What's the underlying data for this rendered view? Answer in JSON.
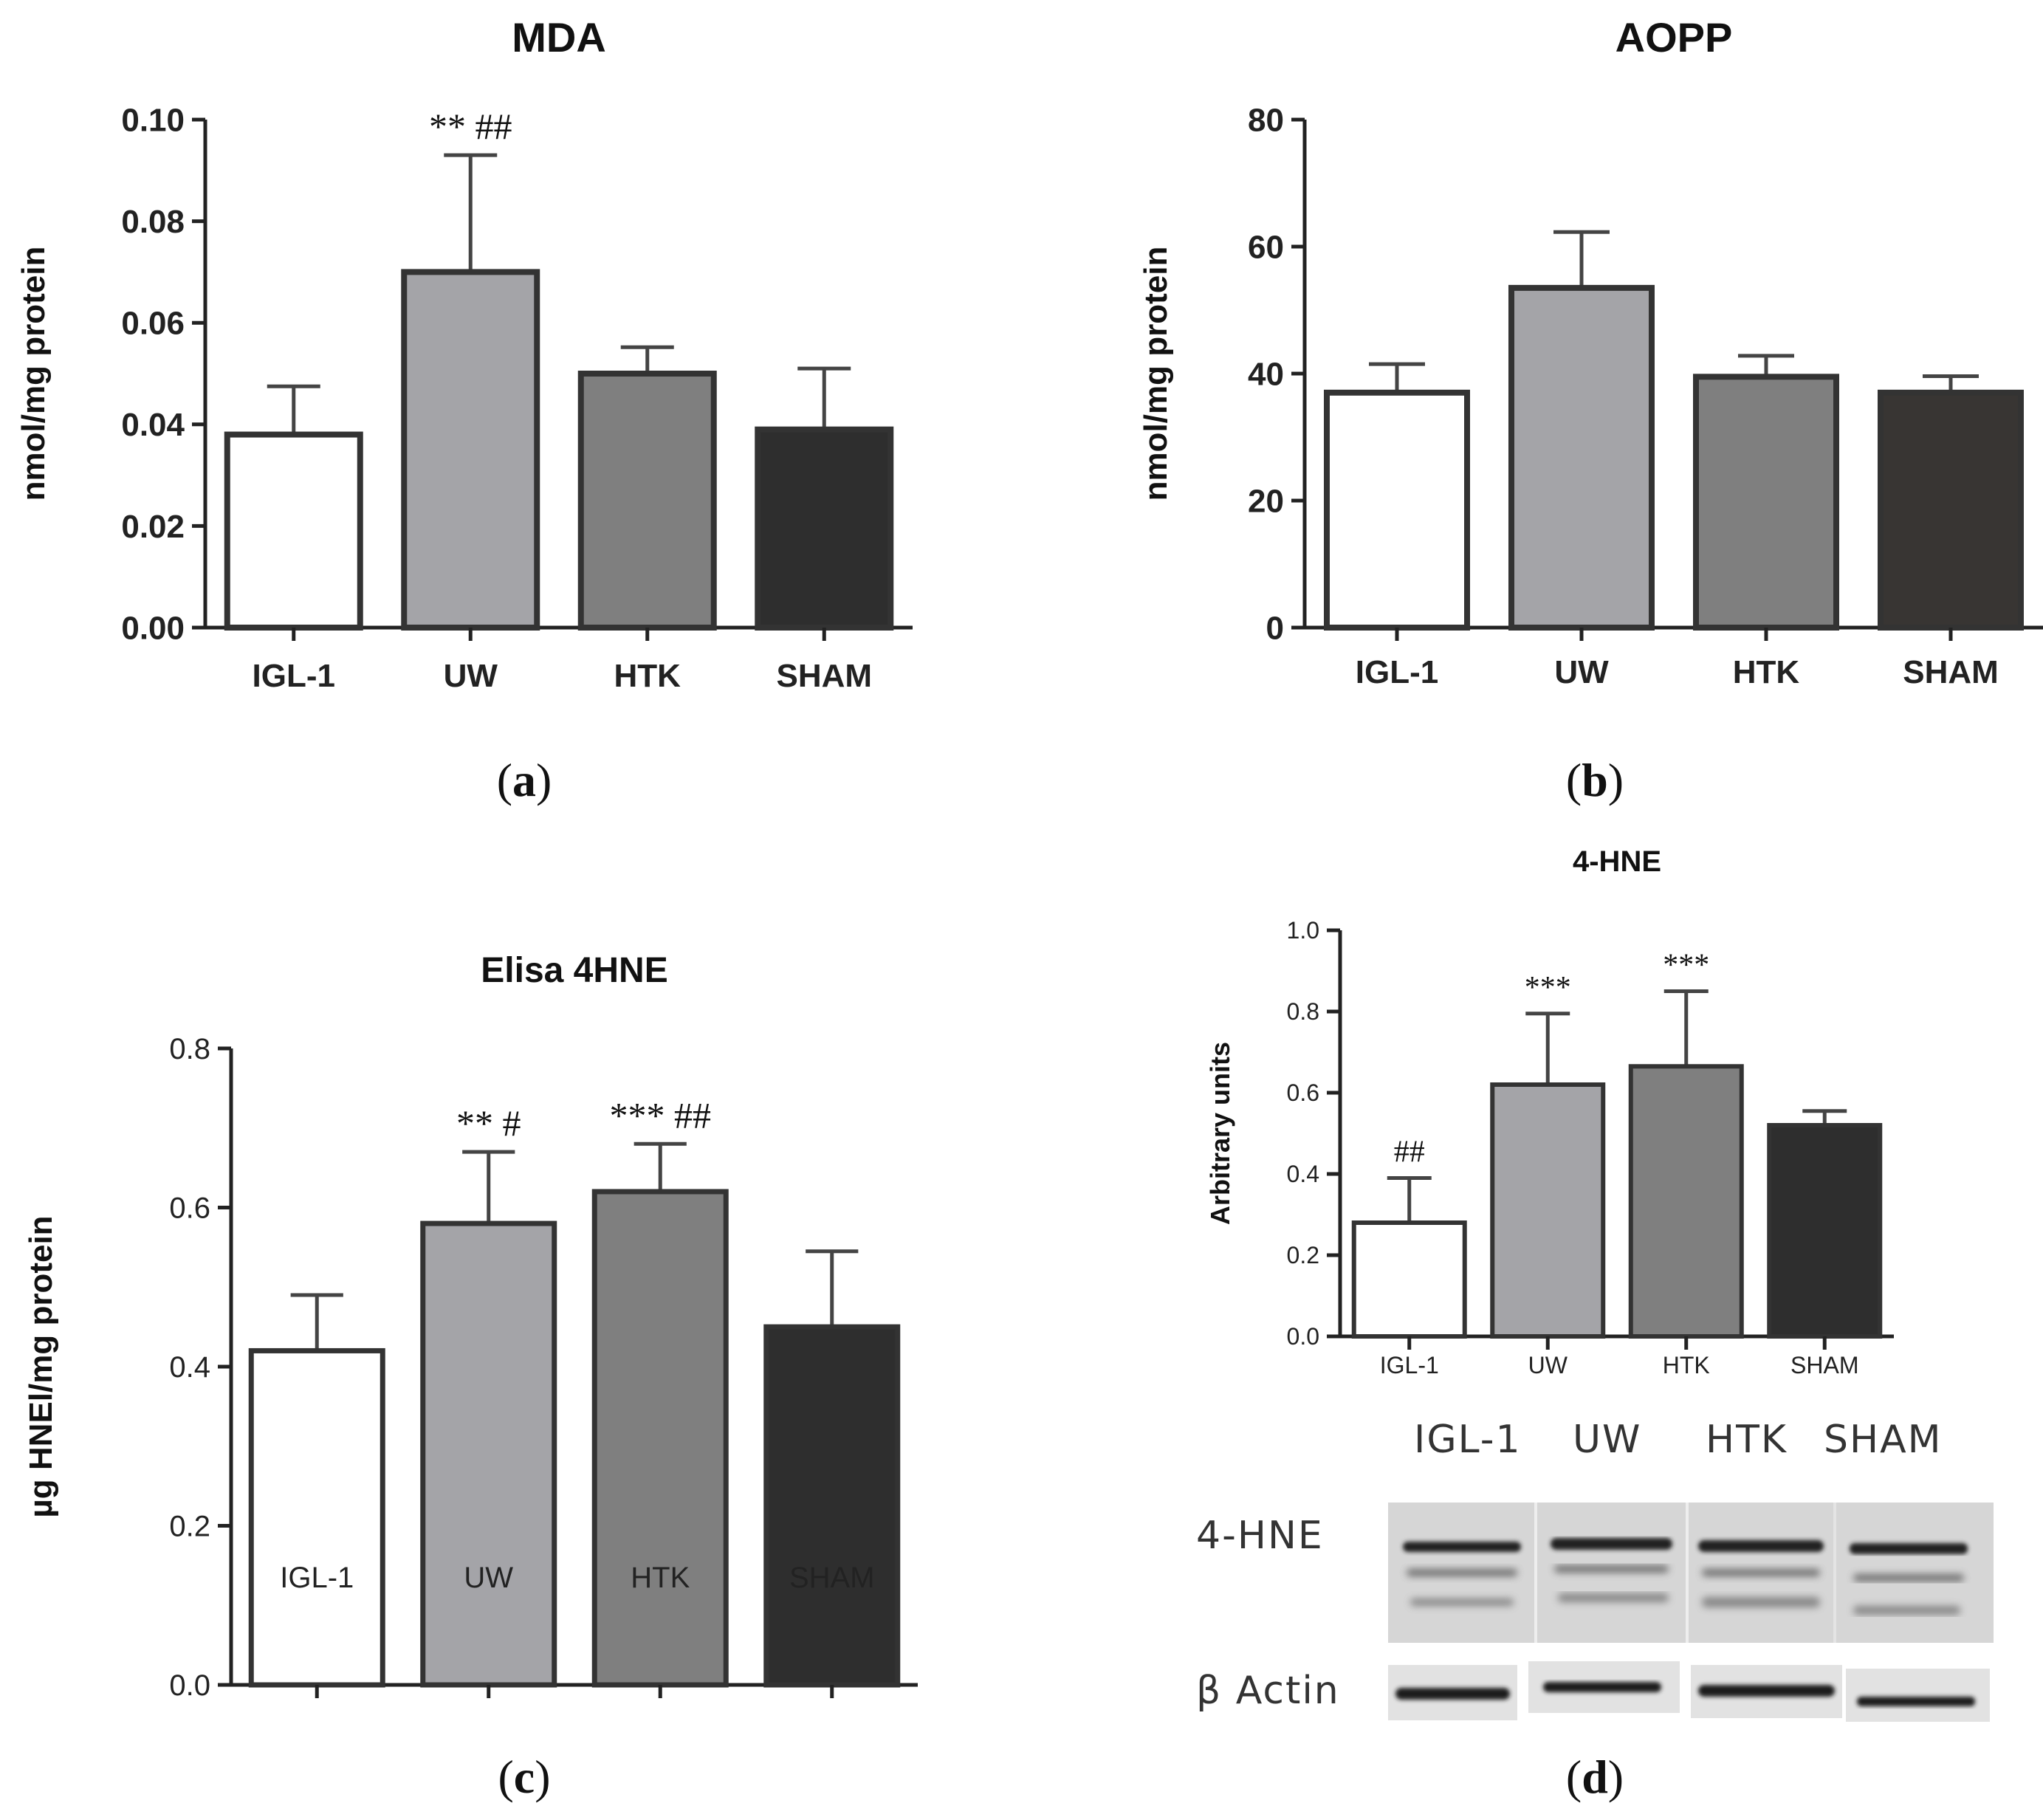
{
  "chart_data": [
    {
      "type": "bar",
      "title": "MDA",
      "ylabel": "nmol/mg protein",
      "xlabel": "",
      "categories": [
        "IGL-1",
        "UW",
        "HTK",
        "SHAM"
      ],
      "values": [
        0.038,
        0.07,
        0.05,
        0.039
      ],
      "errors": [
        0.0095,
        0.023,
        0.0052,
        0.012
      ],
      "ylim": [
        0,
        0.1
      ],
      "yticks": [
        "0.00",
        "0.02",
        "0.04",
        "0.06",
        "0.08",
        "0.10"
      ],
      "annotations": [
        "",
        "** ##",
        "",
        ""
      ],
      "colors": [
        "#ffffff",
        "#a4a4a8",
        "#7f7f7f",
        "#2e2e2e"
      ],
      "panel_label": "a"
    },
    {
      "type": "bar",
      "title": "AOPP",
      "ylabel": "nmol/mg protein",
      "xlabel": "",
      "categories": [
        "IGL-1",
        "UW",
        "HTK",
        "SHAM"
      ],
      "values": [
        37,
        53.5,
        39.5,
        37
      ],
      "errors": [
        4.5,
        8.8,
        3.3,
        2.6
      ],
      "ylim": [
        0,
        80
      ],
      "yticks": [
        "0",
        "20",
        "40",
        "60",
        "80"
      ],
      "annotations": [
        "",
        "",
        "",
        ""
      ],
      "colors": [
        "#ffffff",
        "#a4a4a8",
        "#7f7f7f",
        "#383533"
      ],
      "panel_label": "b"
    },
    {
      "type": "bar",
      "title": "Elisa 4HNE",
      "ylabel": "µg HNEl/mg protein",
      "xlabel": "",
      "categories": [
        "IGL-1",
        "UW",
        "HTK",
        "SHAM"
      ],
      "values": [
        0.42,
        0.58,
        0.62,
        0.45
      ],
      "errors": [
        0.07,
        0.09,
        0.06,
        0.095
      ],
      "ylim": [
        0,
        0.8
      ],
      "yticks": [
        "0.0",
        "0.2",
        "0.4",
        "0.6",
        "0.8"
      ],
      "annotations": [
        "",
        "** #",
        "*** ##",
        ""
      ],
      "colors": [
        "#ffffff",
        "#a4a4a8",
        "#7f7f7f",
        "#2e2e2e"
      ],
      "panel_label": "c"
    },
    {
      "type": "bar",
      "title": "4-HNE",
      "ylabel": "Arbitrary units",
      "xlabel": "",
      "categories": [
        "IGL-1",
        "UW",
        "HTK",
        "SHAM"
      ],
      "values": [
        0.28,
        0.62,
        0.665,
        0.52
      ],
      "errors": [
        0.11,
        0.175,
        0.185,
        0.035
      ],
      "ylim": [
        0,
        1.0
      ],
      "yticks": [
        "0.0",
        "0.2",
        "0.4",
        "0.6",
        "0.8",
        "1.0"
      ],
      "annotations": [
        "##",
        "***",
        "***",
        ""
      ],
      "colors": [
        "#ffffff",
        "#a4a4a8",
        "#7f7f7f",
        "#2e2e2e"
      ],
      "panel_label": "d"
    }
  ],
  "blot": {
    "lanes": [
      "IGL-1",
      "UW",
      "HTK",
      "SHAM"
    ],
    "row_labels": [
      "4-HNE",
      "β Actin"
    ]
  }
}
